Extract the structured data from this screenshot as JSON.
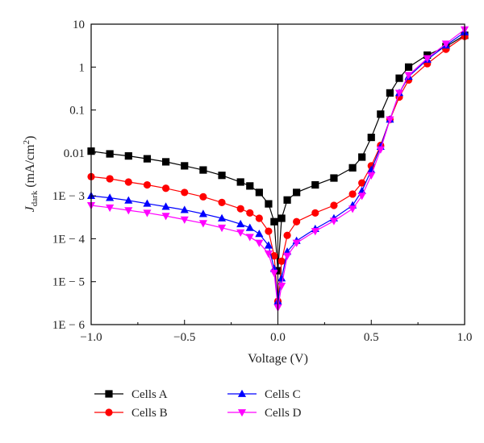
{
  "chart_data": {
    "type": "scatter",
    "scale_y": "log",
    "xlabel": "Voltage (V)",
    "ylabel": {
      "italic": "J",
      "subscript": "dark",
      "unit_open": " (mA/cm",
      "unit_sup": "2",
      "unit_close": ")"
    },
    "xlim": [
      -1.0,
      1.0
    ],
    "ylim": [
      1e-06,
      10
    ],
    "x_ticks": [
      {
        "value": -1.0,
        "label": "−1.0"
      },
      {
        "value": -0.5,
        "label": "−0.5"
      },
      {
        "value": 0.0,
        "label": "0.0"
      },
      {
        "value": 0.5,
        "label": "0.5"
      },
      {
        "value": 1.0,
        "label": "1.0"
      }
    ],
    "y_ticks": [
      {
        "value": 10,
        "label": "10"
      },
      {
        "value": 1,
        "label": "1"
      },
      {
        "value": 0.1,
        "label": "0.1"
      },
      {
        "value": 0.01,
        "label": "0.01"
      },
      {
        "value": 0.001,
        "label": "1E − 3"
      },
      {
        "value": 0.0001,
        "label": "1E − 4"
      },
      {
        "value": 1e-05,
        "label": "1E − 5"
      },
      {
        "value": 1e-06,
        "label": "1E − 6"
      }
    ],
    "legend_position": "bottom",
    "grid": false,
    "series": [
      {
        "name": "Cells A",
        "color": "#000000",
        "marker": "square",
        "points": [
          [
            -1.0,
            0.011
          ],
          [
            -0.9,
            0.0095
          ],
          [
            -0.8,
            0.0085
          ],
          [
            -0.7,
            0.0073
          ],
          [
            -0.6,
            0.0062
          ],
          [
            -0.5,
            0.005
          ],
          [
            -0.4,
            0.004
          ],
          [
            -0.3,
            0.003
          ],
          [
            -0.2,
            0.0021
          ],
          [
            -0.15,
            0.0017
          ],
          [
            -0.1,
            0.0012
          ],
          [
            -0.05,
            0.00065
          ],
          [
            -0.02,
            0.00025
          ],
          [
            0.0,
            1.8e-05
          ],
          [
            0.02,
            0.0003
          ],
          [
            0.05,
            0.0008
          ],
          [
            0.1,
            0.0012
          ],
          [
            0.2,
            0.0018
          ],
          [
            0.3,
            0.0026
          ],
          [
            0.4,
            0.0045
          ],
          [
            0.45,
            0.008
          ],
          [
            0.5,
            0.023
          ],
          [
            0.55,
            0.08
          ],
          [
            0.6,
            0.25
          ],
          [
            0.65,
            0.55
          ],
          [
            0.7,
            1.0
          ],
          [
            0.8,
            1.9
          ],
          [
            0.9,
            3.0
          ],
          [
            1.0,
            5.5
          ]
        ]
      },
      {
        "name": "Cells B",
        "color": "#ff0000",
        "marker": "circle",
        "points": [
          [
            -1.0,
            0.0028
          ],
          [
            -0.9,
            0.0025
          ],
          [
            -0.8,
            0.0021
          ],
          [
            -0.7,
            0.0018
          ],
          [
            -0.6,
            0.0015
          ],
          [
            -0.5,
            0.0012
          ],
          [
            -0.4,
            0.00095
          ],
          [
            -0.3,
            0.0007
          ],
          [
            -0.2,
            0.0005
          ],
          [
            -0.15,
            0.0004
          ],
          [
            -0.1,
            0.0003
          ],
          [
            -0.05,
            0.00015
          ],
          [
            -0.02,
            4e-05
          ],
          [
            0.0,
            3.5e-06
          ],
          [
            0.02,
            3e-05
          ],
          [
            0.05,
            0.00012
          ],
          [
            0.1,
            0.00025
          ],
          [
            0.2,
            0.0004
          ],
          [
            0.3,
            0.0006
          ],
          [
            0.4,
            0.0011
          ],
          [
            0.45,
            0.002
          ],
          [
            0.5,
            0.005
          ],
          [
            0.55,
            0.015
          ],
          [
            0.6,
            0.06
          ],
          [
            0.65,
            0.2
          ],
          [
            0.7,
            0.5
          ],
          [
            0.8,
            1.2
          ],
          [
            0.9,
            2.6
          ],
          [
            1.0,
            5.2
          ]
        ]
      },
      {
        "name": "Cells C",
        "color": "#0000ff",
        "marker": "triangle-up",
        "points": [
          [
            -1.0,
            0.001
          ],
          [
            -0.9,
            0.0009
          ],
          [
            -0.8,
            0.00078
          ],
          [
            -0.7,
            0.00066
          ],
          [
            -0.6,
            0.00056
          ],
          [
            -0.5,
            0.00047
          ],
          [
            -0.4,
            0.00038
          ],
          [
            -0.3,
            0.0003
          ],
          [
            -0.2,
            0.00022
          ],
          [
            -0.15,
            0.00018
          ],
          [
            -0.1,
            0.00013
          ],
          [
            -0.05,
            7e-05
          ],
          [
            -0.02,
            2e-05
          ],
          [
            0.0,
            3.5e-06
          ],
          [
            0.02,
            1.2e-05
          ],
          [
            0.05,
            5e-05
          ],
          [
            0.1,
            9e-05
          ],
          [
            0.2,
            0.00017
          ],
          [
            0.3,
            0.0003
          ],
          [
            0.4,
            0.0006
          ],
          [
            0.45,
            0.0013
          ],
          [
            0.5,
            0.004
          ],
          [
            0.55,
            0.014
          ],
          [
            0.6,
            0.06
          ],
          [
            0.65,
            0.25
          ],
          [
            0.7,
            0.6
          ],
          [
            0.8,
            1.5
          ],
          [
            0.9,
            3.2
          ],
          [
            1.0,
            6.5
          ]
        ]
      },
      {
        "name": "Cells D",
        "color": "#ff00ff",
        "marker": "triangle-down",
        "points": [
          [
            -1.0,
            0.0006
          ],
          [
            -0.9,
            0.00053
          ],
          [
            -0.8,
            0.00046
          ],
          [
            -0.7,
            0.0004
          ],
          [
            -0.6,
            0.00034
          ],
          [
            -0.5,
            0.00028
          ],
          [
            -0.4,
            0.00023
          ],
          [
            -0.3,
            0.00018
          ],
          [
            -0.2,
            0.00014
          ],
          [
            -0.15,
            0.00011
          ],
          [
            -0.1,
            8e-05
          ],
          [
            -0.05,
            4.5e-05
          ],
          [
            -0.02,
            1.6e-05
          ],
          [
            0.0,
            2.5e-06
          ],
          [
            0.02,
            8e-06
          ],
          [
            0.05,
            4e-05
          ],
          [
            0.1,
            8e-05
          ],
          [
            0.2,
            0.00015
          ],
          [
            0.3,
            0.00026
          ],
          [
            0.4,
            0.0005
          ],
          [
            0.45,
            0.001
          ],
          [
            0.5,
            0.003
          ],
          [
            0.55,
            0.012
          ],
          [
            0.6,
            0.06
          ],
          [
            0.65,
            0.25
          ],
          [
            0.7,
            0.65
          ],
          [
            0.8,
            1.6
          ],
          [
            0.9,
            3.5
          ],
          [
            1.0,
            7.5
          ]
        ]
      }
    ]
  }
}
